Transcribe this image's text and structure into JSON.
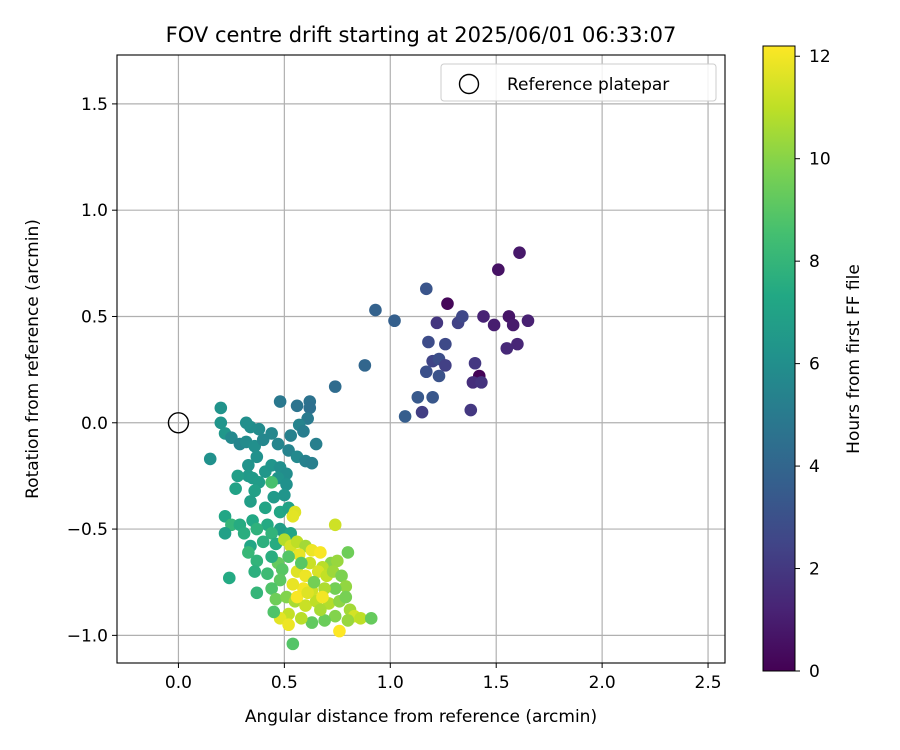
{
  "chart_data": {
    "type": "scatter",
    "title": "FOV centre drift starting at 2025/06/01 06:33:07",
    "xlabel": "Angular distance from reference (arcmin)",
    "ylabel": "Rotation from reference (arcmin)",
    "xlim": [
      -0.29,
      2.58
    ],
    "ylim": [
      -1.13,
      1.73
    ],
    "x_ticks": [
      "0.0",
      "0.5",
      "1.0",
      "1.5",
      "2.0",
      "2.5"
    ],
    "y_ticks": [
      "1.5",
      "1.0",
      "0.5",
      "0.0",
      "−0.5",
      "−1.0"
    ],
    "grid": true,
    "legend": {
      "placement": "top-right",
      "entries": [
        "Reference platepar"
      ]
    },
    "reference": {
      "x": 0.0,
      "y": 0.0
    },
    "colorbar": {
      "label": "Hours from first FF file",
      "range": [
        0,
        12.2
      ],
      "ticks": [
        "0",
        "2",
        "4",
        "6",
        "8",
        "10",
        "12"
      ],
      "colormap": "viridis"
    },
    "points": [
      [
        1.61,
        0.8,
        0.8
      ],
      [
        1.51,
        0.72,
        0.6
      ],
      [
        1.27,
        0.56,
        0.2
      ],
      [
        1.44,
        0.5,
        1.2
      ],
      [
        1.49,
        0.46,
        1.0
      ],
      [
        1.56,
        0.5,
        0.7
      ],
      [
        1.58,
        0.46,
        0.9
      ],
      [
        1.65,
        0.48,
        1.1
      ],
      [
        1.6,
        0.37,
        1.3
      ],
      [
        1.55,
        0.35,
        1.4
      ],
      [
        1.22,
        0.47,
        1.9
      ],
      [
        1.32,
        0.47,
        2.4
      ],
      [
        1.34,
        0.5,
        2.6
      ],
      [
        1.17,
        0.63,
        3.2
      ],
      [
        1.26,
        0.37,
        2.7
      ],
      [
        1.18,
        0.38,
        2.8
      ],
      [
        1.2,
        0.29,
        2.5
      ],
      [
        1.23,
        0.3,
        2.9
      ],
      [
        1.26,
        0.27,
        2.3
      ],
      [
        1.17,
        0.24,
        3.0
      ],
      [
        1.23,
        0.22,
        3.1
      ],
      [
        1.4,
        0.28,
        2.0
      ],
      [
        1.42,
        0.22,
        0.1
      ],
      [
        1.39,
        0.19,
        1.6
      ],
      [
        1.43,
        0.19,
        1.8
      ],
      [
        1.2,
        0.12,
        3.3
      ],
      [
        1.13,
        0.12,
        3.4
      ],
      [
        1.15,
        0.05,
        2.2
      ],
      [
        1.07,
        0.03,
        3.6
      ],
      [
        1.38,
        0.06,
        2.0
      ],
      [
        0.93,
        0.53,
        3.8
      ],
      [
        1.02,
        0.48,
        3.7
      ],
      [
        0.88,
        0.27,
        4.0
      ],
      [
        0.74,
        0.17,
        4.3
      ],
      [
        0.62,
        0.1,
        4.6
      ],
      [
        0.56,
        0.08,
        4.7
      ],
      [
        0.62,
        0.07,
        4.5
      ],
      [
        0.48,
        0.1,
        4.9
      ],
      [
        0.61,
        0.02,
        5.0
      ],
      [
        0.65,
        -0.1,
        5.2
      ],
      [
        0.57,
        -0.01,
        5.4
      ],
      [
        0.59,
        -0.04,
        5.1
      ],
      [
        0.53,
        -0.06,
        5.3
      ],
      [
        0.44,
        -0.05,
        5.6
      ],
      [
        0.38,
        -0.03,
        5.8
      ],
      [
        0.34,
        -0.02,
        5.9
      ],
      [
        0.32,
        0.0,
        6.0
      ],
      [
        0.2,
        0.07,
        6.2
      ],
      [
        0.2,
        0.0,
        6.3
      ],
      [
        0.15,
        -0.17,
        6.1
      ],
      [
        0.22,
        -0.05,
        6.4
      ],
      [
        0.25,
        -0.07,
        5.7
      ],
      [
        0.29,
        -0.1,
        5.5
      ],
      [
        0.32,
        -0.09,
        5.8
      ],
      [
        0.36,
        -0.11,
        6.0
      ],
      [
        0.4,
        -0.08,
        5.6
      ],
      [
        0.47,
        -0.1,
        5.5
      ],
      [
        0.52,
        -0.13,
        5.4
      ],
      [
        0.56,
        -0.16,
        5.7
      ],
      [
        0.6,
        -0.18,
        5.3
      ],
      [
        0.63,
        -0.19,
        5.2
      ],
      [
        0.37,
        -0.16,
        6.1
      ],
      [
        0.33,
        -0.2,
        6.2
      ],
      [
        0.33,
        -0.25,
        6.5
      ],
      [
        0.28,
        -0.25,
        6.8
      ],
      [
        0.35,
        -0.26,
        6.6
      ],
      [
        0.41,
        -0.23,
        6.4
      ],
      [
        0.44,
        -0.2,
        6.3
      ],
      [
        0.48,
        -0.21,
        6.0
      ],
      [
        0.51,
        -0.24,
        5.9
      ],
      [
        0.47,
        -0.26,
        6.2
      ],
      [
        0.44,
        -0.28,
        8.6
      ],
      [
        0.38,
        -0.28,
        6.7
      ],
      [
        0.27,
        -0.31,
        7.0
      ],
      [
        0.36,
        -0.32,
        6.9
      ],
      [
        0.51,
        -0.29,
        6.1
      ],
      [
        0.5,
        -0.34,
        6.3
      ],
      [
        0.45,
        -0.35,
        6.6
      ],
      [
        0.34,
        -0.37,
        6.8
      ],
      [
        0.41,
        -0.4,
        7.1
      ],
      [
        0.48,
        -0.42,
        7.2
      ],
      [
        0.52,
        -0.4,
        7.0
      ],
      [
        0.55,
        -0.42,
        11.6
      ],
      [
        0.54,
        -0.44,
        11.7
      ],
      [
        0.22,
        -0.44,
        7.2
      ],
      [
        0.25,
        -0.48,
        8.0
      ],
      [
        0.29,
        -0.48,
        7.5
      ],
      [
        0.35,
        -0.46,
        7.3
      ],
      [
        0.42,
        -0.48,
        7.4
      ],
      [
        0.48,
        -0.5,
        6.8
      ],
      [
        0.5,
        -0.52,
        6.7
      ],
      [
        0.53,
        -0.52,
        7.1
      ],
      [
        0.22,
        -0.52,
        6.9
      ],
      [
        0.31,
        -0.52,
        7.6
      ],
      [
        0.37,
        -0.5,
        7.8
      ],
      [
        0.44,
        -0.52,
        7.9
      ],
      [
        0.4,
        -0.56,
        7.7
      ],
      [
        0.34,
        -0.58,
        7.2
      ],
      [
        0.46,
        -0.57,
        7.5
      ],
      [
        0.5,
        -0.55,
        10.8
      ],
      [
        0.53,
        -0.58,
        11.4
      ],
      [
        0.56,
        -0.56,
        11.0
      ],
      [
        0.6,
        -0.58,
        10.5
      ],
      [
        0.63,
        -0.6,
        11.9
      ],
      [
        0.67,
        -0.61,
        12.1
      ],
      [
        0.74,
        -0.48,
        11.3
      ],
      [
        0.8,
        -0.61,
        9.5
      ],
      [
        0.72,
        -0.66,
        10.0
      ],
      [
        0.75,
        -0.65,
        10.3
      ],
      [
        0.68,
        -0.68,
        10.9
      ],
      [
        0.62,
        -0.66,
        11.2
      ],
      [
        0.57,
        -0.62,
        11.8
      ],
      [
        0.52,
        -0.63,
        8.9
      ],
      [
        0.47,
        -0.66,
        9.3
      ],
      [
        0.44,
        -0.63,
        7.6
      ],
      [
        0.37,
        -0.65,
        7.9
      ],
      [
        0.33,
        -0.61,
        8.1
      ],
      [
        0.36,
        -0.7,
        7.7
      ],
      [
        0.42,
        -0.71,
        8.3
      ],
      [
        0.49,
        -0.69,
        9.0
      ],
      [
        0.56,
        -0.7,
        11.6
      ],
      [
        0.6,
        -0.72,
        11.9
      ],
      [
        0.66,
        -0.7,
        11.5
      ],
      [
        0.7,
        -0.72,
        11.1
      ],
      [
        0.73,
        -0.7,
        10.4
      ],
      [
        0.77,
        -0.72,
        9.8
      ],
      [
        0.79,
        -0.77,
        10.2
      ],
      [
        0.74,
        -0.78,
        9.6
      ],
      [
        0.69,
        -0.78,
        10.7
      ],
      [
        0.63,
        -0.79,
        11.3
      ],
      [
        0.59,
        -0.78,
        12.0
      ],
      [
        0.54,
        -0.76,
        11.8
      ],
      [
        0.48,
        -0.74,
        9.1
      ],
      [
        0.44,
        -0.78,
        8.8
      ],
      [
        0.24,
        -0.73,
        7.4
      ],
      [
        0.37,
        -0.8,
        8.0
      ],
      [
        0.46,
        -0.83,
        9.5
      ],
      [
        0.51,
        -0.82,
        9.9
      ],
      [
        0.55,
        -0.84,
        10.6
      ],
      [
        0.6,
        -0.86,
        11.2
      ],
      [
        0.65,
        -0.84,
        11.0
      ],
      [
        0.71,
        -0.85,
        10.8
      ],
      [
        0.76,
        -0.84,
        10.1
      ],
      [
        0.79,
        -0.82,
        9.7
      ],
      [
        0.81,
        -0.88,
        10.5
      ],
      [
        0.83,
        -0.91,
        11.4
      ],
      [
        0.86,
        -0.92,
        11.0
      ],
      [
        0.8,
        -0.93,
        10.3
      ],
      [
        0.74,
        -0.91,
        9.9
      ],
      [
        0.69,
        -0.93,
        9.4
      ],
      [
        0.63,
        -0.94,
        9.2
      ],
      [
        0.58,
        -0.92,
        10.9
      ],
      [
        0.52,
        -0.9,
        11.1
      ],
      [
        0.48,
        -0.92,
        11.7
      ],
      [
        0.45,
        -0.89,
        8.8
      ],
      [
        0.52,
        -0.95,
        11.9
      ],
      [
        0.54,
        -1.04,
        8.9
      ],
      [
        0.67,
        -0.88,
        10.6
      ],
      [
        0.76,
        -0.98,
        12.2
      ],
      [
        0.91,
        -0.92,
        9.3
      ],
      [
        0.56,
        -0.82,
        12.1
      ],
      [
        0.61,
        -0.8,
        11.6
      ],
      [
        0.68,
        -0.82,
        12.0
      ],
      [
        0.58,
        -0.66,
        9.0
      ],
      [
        0.64,
        -0.75,
        9.6
      ]
    ]
  }
}
